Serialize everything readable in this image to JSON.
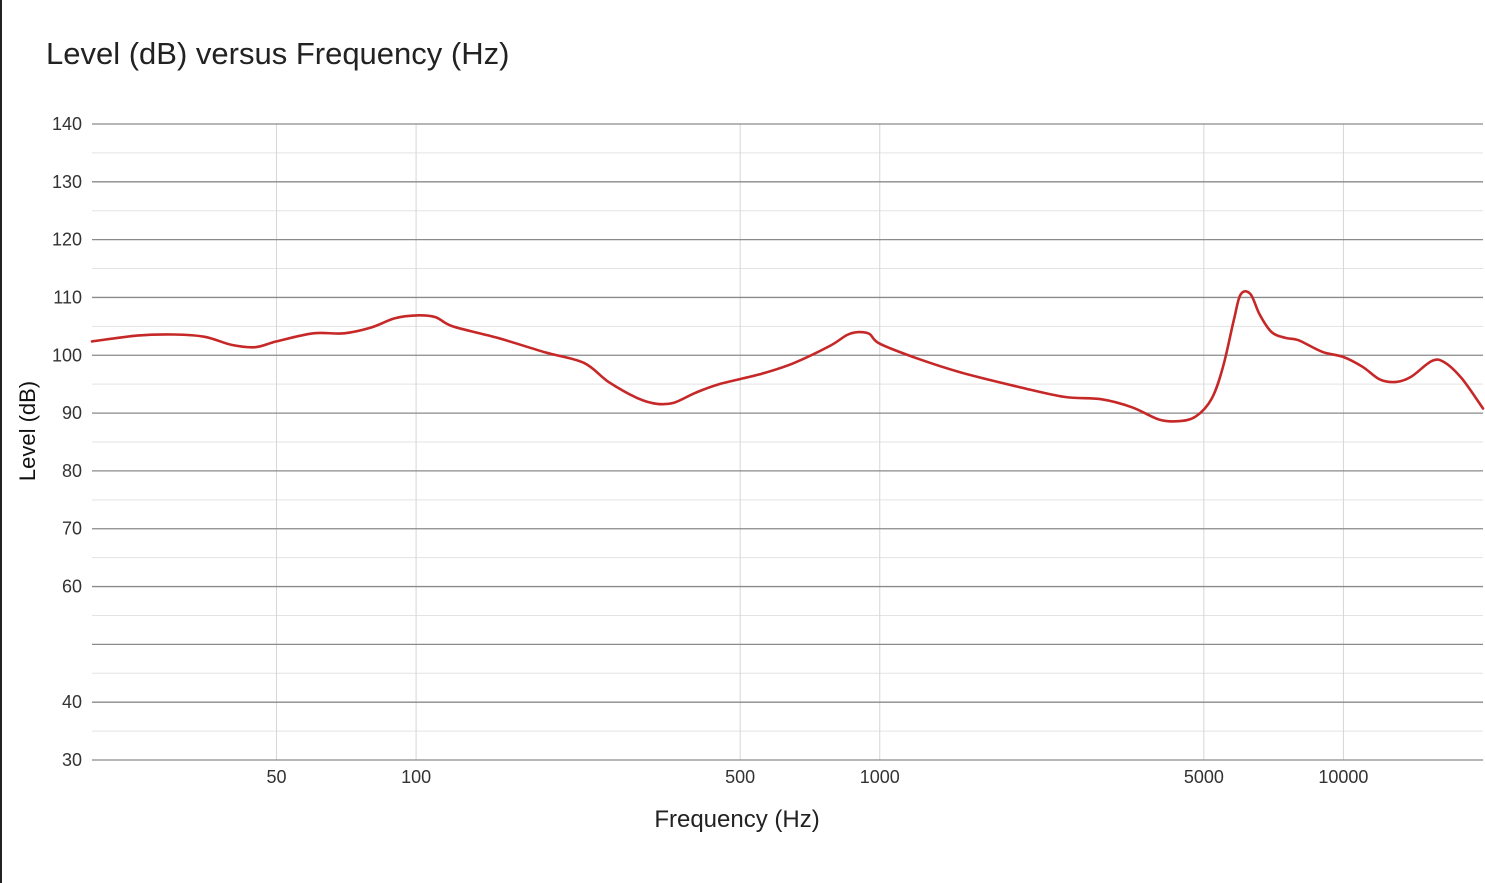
{
  "chart_data": {
    "type": "line",
    "title": "Level (dB) versus Frequency (Hz)",
    "xlabel": "Frequency (Hz)",
    "ylabel": "Level (dB)",
    "x_scale": "log",
    "xlim": [
      20,
      20000
    ],
    "ylim": [
      30,
      140
    ],
    "y_ticks": [
      {
        "value": 30,
        "label": "30"
      },
      {
        "value": 40,
        "label": "40"
      },
      {
        "value": 50,
        "label": ""
      },
      {
        "value": 60,
        "label": "60"
      },
      {
        "value": 70,
        "label": "70"
      },
      {
        "value": 80,
        "label": "80"
      },
      {
        "value": 90,
        "label": "90"
      },
      {
        "value": 100,
        "label": "100"
      },
      {
        "value": 110,
        "label": "110"
      },
      {
        "value": 120,
        "label": "120"
      },
      {
        "value": 130,
        "label": "130"
      },
      {
        "value": 140,
        "label": "140"
      }
    ],
    "x_ticks": [
      {
        "value": 50,
        "label": "50"
      },
      {
        "value": 100,
        "label": "100"
      },
      {
        "value": 500,
        "label": "500"
      },
      {
        "value": 1000,
        "label": "1000"
      },
      {
        "value": 5000,
        "label": "5000"
      },
      {
        "value": 10000,
        "label": "10000"
      }
    ],
    "grid": true,
    "legend": "none",
    "series": [
      {
        "color": "#c62828",
        "points": [
          [
            20,
            102.4
          ],
          [
            25,
            103.4
          ],
          [
            30,
            103.6
          ],
          [
            35,
            103.2
          ],
          [
            40,
            101.8
          ],
          [
            45,
            101.4
          ],
          [
            50,
            102.4
          ],
          [
            60,
            103.8
          ],
          [
            70,
            103.8
          ],
          [
            80,
            104.8
          ],
          [
            90,
            106.4
          ],
          [
            100,
            106.9
          ],
          [
            110,
            106.6
          ],
          [
            120,
            105.0
          ],
          [
            150,
            103.0
          ],
          [
            190,
            100.5
          ],
          [
            230,
            98.7
          ],
          [
            260,
            95.4
          ],
          [
            300,
            92.6
          ],
          [
            330,
            91.6
          ],
          [
            360,
            91.8
          ],
          [
            400,
            93.5
          ],
          [
            450,
            95.0
          ],
          [
            550,
            96.7
          ],
          [
            650,
            98.6
          ],
          [
            780,
            101.6
          ],
          [
            850,
            103.5
          ],
          [
            900,
            104.0
          ],
          [
            950,
            103.7
          ],
          [
            1000,
            102.0
          ],
          [
            1200,
            99.5
          ],
          [
            1500,
            97.0
          ],
          [
            2000,
            94.5
          ],
          [
            2500,
            92.8
          ],
          [
            3000,
            92.4
          ],
          [
            3500,
            91.0
          ],
          [
            4000,
            88.9
          ],
          [
            4400,
            88.6
          ],
          [
            4800,
            89.4
          ],
          [
            5200,
            92.5
          ],
          [
            5500,
            98.0
          ],
          [
            5800,
            106.0
          ],
          [
            6000,
            110.5
          ],
          [
            6300,
            110.6
          ],
          [
            6600,
            107.0
          ],
          [
            7000,
            104.0
          ],
          [
            7500,
            103.0
          ],
          [
            8000,
            102.6
          ],
          [
            9000,
            100.6
          ],
          [
            10000,
            99.7
          ],
          [
            11000,
            98.0
          ],
          [
            12000,
            95.8
          ],
          [
            13000,
            95.4
          ],
          [
            14000,
            96.3
          ],
          [
            15500,
            99.0
          ],
          [
            16500,
            98.8
          ],
          [
            18000,
            96.0
          ],
          [
            20000,
            90.8
          ]
        ]
      }
    ]
  }
}
